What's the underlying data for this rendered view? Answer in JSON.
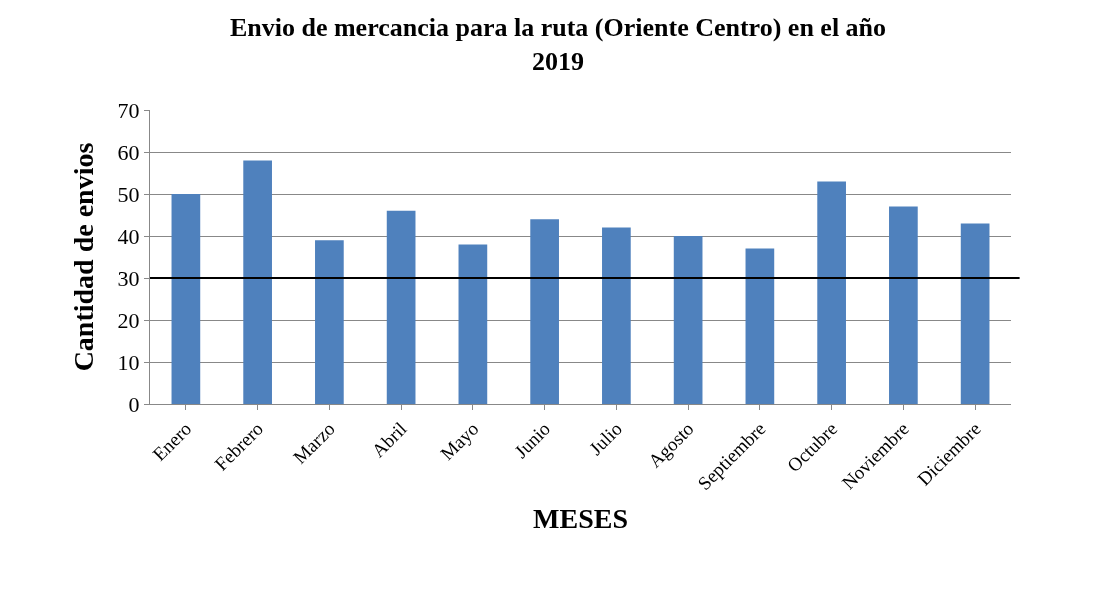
{
  "chart_data": {
    "type": "bar",
    "title": "Envio de mercancia para la ruta (Oriente Centro) en el año 2019",
    "xlabel": "MESES",
    "ylabel": "Cantidad de envios",
    "categories": [
      "Enero",
      "Febrero",
      "Marzo",
      "Abril",
      "Mayo",
      "Junio",
      "Julio",
      "Agosto",
      "Septiembre",
      "Octubre",
      "Noviembre",
      "Diciembre"
    ],
    "values": [
      50,
      58,
      39,
      46,
      38,
      44,
      42,
      40,
      37,
      53,
      47,
      43
    ],
    "color": "#4f81bd",
    "ylim": [
      0,
      70
    ],
    "yticks": [
      0,
      10,
      20,
      30,
      40,
      50,
      60,
      70
    ],
    "grid": "y",
    "ref_lines": [
      {
        "axis": "y",
        "value": 30,
        "color": "#000000"
      }
    ]
  }
}
